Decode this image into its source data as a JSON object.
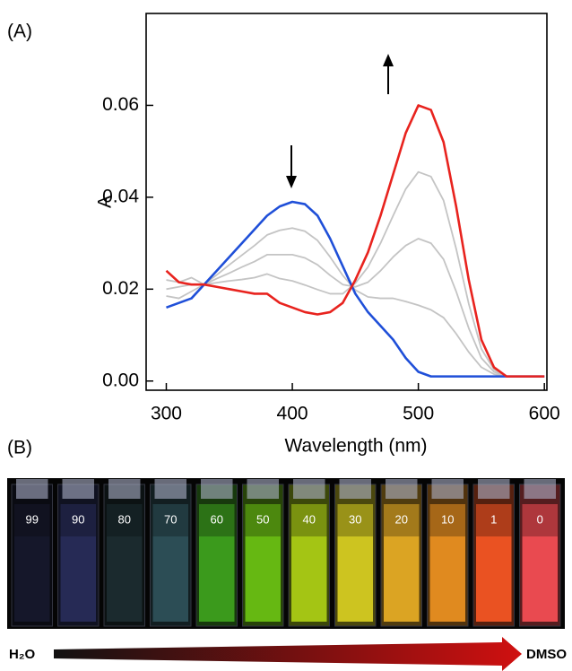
{
  "panel_a_label": "(A)",
  "panel_b_label": "(B)",
  "chart_data": {
    "type": "line",
    "xlabel": "Wavelength (nm)",
    "ylabel": "A",
    "x": [
      300,
      310,
      320,
      330,
      340,
      350,
      360,
      370,
      380,
      390,
      400,
      410,
      420,
      430,
      440,
      450,
      460,
      470,
      480,
      490,
      500,
      510,
      520,
      530,
      540,
      550,
      560,
      570,
      580,
      590,
      600
    ],
    "series": [
      {
        "color": "#c4c4c4",
        "values": [
          0.0185,
          0.018,
          0.0195,
          0.021,
          0.0231,
          0.0253,
          0.0274,
          0.0295,
          0.0318,
          0.0328,
          0.0333,
          0.0326,
          0.0306,
          0.027,
          0.023,
          0.0198,
          0.0183,
          0.018,
          0.018,
          0.0173,
          0.0165,
          0.0155,
          0.0138,
          0.0103,
          0.0063,
          0.003,
          0.0015,
          0.001,
          0.001,
          0.001,
          0.001
        ]
      },
      {
        "color": "#c4c4c4",
        "values": [
          0.02,
          0.0205,
          0.021,
          0.021,
          0.0223,
          0.0235,
          0.0248,
          0.026,
          0.0275,
          0.0275,
          0.0275,
          0.0268,
          0.0253,
          0.023,
          0.021,
          0.0205,
          0.0215,
          0.024,
          0.027,
          0.0295,
          0.031,
          0.03,
          0.0265,
          0.0195,
          0.0115,
          0.005,
          0.002,
          0.001,
          0.001,
          0.001,
          0.001
        ]
      },
      {
        "color": "#c4c4c4",
        "values": [
          0.022,
          0.0215,
          0.0225,
          0.021,
          0.0214,
          0.0218,
          0.0221,
          0.0225,
          0.0233,
          0.0223,
          0.0218,
          0.0209,
          0.0199,
          0.019,
          0.019,
          0.0213,
          0.0248,
          0.03,
          0.036,
          0.0418,
          0.0455,
          0.0445,
          0.0393,
          0.0288,
          0.0168,
          0.007,
          0.0025,
          0.001,
          0.001,
          0.001,
          0.001
        ]
      },
      {
        "color": "#1f4fd8",
        "values": [
          0.016,
          0.017,
          0.018,
          0.021,
          0.024,
          0.027,
          0.03,
          0.033,
          0.036,
          0.038,
          0.039,
          0.0385,
          0.036,
          0.031,
          0.025,
          0.019,
          0.015,
          0.012,
          0.009,
          0.005,
          0.002,
          0.001,
          0.001,
          0.001,
          0.001,
          0.001,
          0.001,
          0.001,
          0.001,
          0.001,
          0.001
        ]
      },
      {
        "color": "#e8231e",
        "values": [
          0.024,
          0.0215,
          0.021,
          0.021,
          0.0205,
          0.02,
          0.0195,
          0.019,
          0.019,
          0.017,
          0.016,
          0.015,
          0.0145,
          0.015,
          0.017,
          0.022,
          0.028,
          0.036,
          0.045,
          0.054,
          0.06,
          0.059,
          0.052,
          0.038,
          0.022,
          0.009,
          0.003,
          0.001,
          0.001,
          0.001,
          0.001
        ]
      }
    ],
    "xlim": [
      284,
      602
    ],
    "xticks": [
      300,
      400,
      500,
      600
    ],
    "ylim": [
      -0.002,
      0.08
    ],
    "yticks": [
      {
        "value": 0,
        "label": "0.00"
      },
      0.02,
      0.04,
      0.06
    ],
    "grid": false
  },
  "photo": {
    "cuvettes": [
      {
        "label": "99",
        "color": "#15172a"
      },
      {
        "label": "90",
        "color": "#262a55"
      },
      {
        "label": "80",
        "color": "#1b2a2e"
      },
      {
        "label": "70",
        "color": "#2c4d55"
      },
      {
        "label": "60",
        "color": "#3b9a1c"
      },
      {
        "label": "50",
        "color": "#66b812"
      },
      {
        "label": "40",
        "color": "#a4c514"
      },
      {
        "label": "30",
        "color": "#cdc420"
      },
      {
        "label": "20",
        "color": "#dba423"
      },
      {
        "label": "10",
        "color": "#e08a1f"
      },
      {
        "label": "1",
        "color": "#ea5222"
      },
      {
        "label": "0",
        "color": "#e94a50"
      }
    ],
    "left_label": "H₂O",
    "right_label": "DMSO"
  }
}
